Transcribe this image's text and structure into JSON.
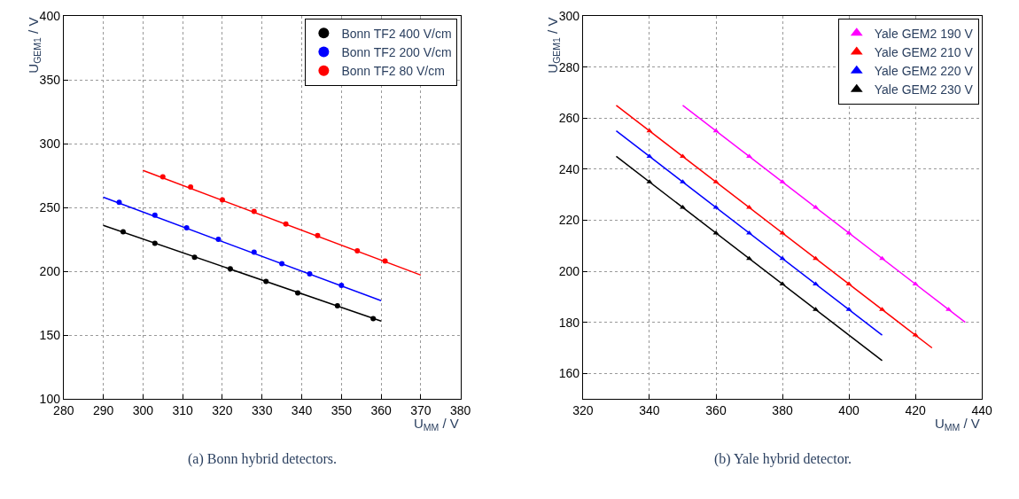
{
  "chart_data": [
    {
      "type": "scatter",
      "annotations": [
        "(a) Bonn hybrid detectors."
      ],
      "xlabel": "U$_{MM}$ / V",
      "ylabel": "U$_{GEM1}$ / V",
      "xlim": [
        280,
        380
      ],
      "ylim": [
        100,
        400
      ],
      "xticks": [
        280,
        290,
        300,
        310,
        320,
        330,
        340,
        350,
        360,
        370,
        380
      ],
      "yticks": [
        100,
        150,
        200,
        250,
        300,
        350,
        400
      ],
      "grid": true,
      "legend": "top right",
      "marker": "circle",
      "series": [
        {
          "name": "Bonn TF2 400 V/cm",
          "color": "#000000",
          "x": [
            295,
            303,
            313,
            322,
            331,
            339,
            349,
            358
          ],
          "values": [
            231,
            222,
            211,
            202,
            192,
            183,
            173,
            163
          ]
        },
        {
          "name": "Bonn TF2 200 V/cm",
          "color": "#0000ff",
          "x": [
            294,
            303,
            311,
            319,
            328,
            335,
            342,
            350
          ],
          "values": [
            254,
            244,
            234,
            225,
            215,
            206,
            198,
            189
          ]
        },
        {
          "name": "Bonn TF2 80 V/cm",
          "color": "#ff0000",
          "x": [
            305,
            312,
            320,
            328,
            336,
            344,
            354,
            361
          ],
          "values": [
            274,
            266,
            256,
            247,
            237,
            228,
            216,
            208
          ]
        },
        {
          "type": "line",
          "marker": "none",
          "color": "#000000",
          "x": [
            290,
            360
          ],
          "values": [
            236,
            161
          ]
        },
        {
          "type": "line",
          "marker": "none",
          "color": "#0000ff",
          "x": [
            290,
            360
          ],
          "values": [
            258,
            177
          ]
        },
        {
          "type": "line",
          "marker": "none",
          "color": "#ff0000",
          "x": [
            300,
            370
          ],
          "values": [
            279,
            197
          ]
        }
      ]
    },
    {
      "type": "scatter",
      "annotations": [
        "(b) Yale hybrid detector."
      ],
      "xlabel": "U$_{MM}$ / V",
      "ylabel": "U$_{GEM1}$ / V",
      "xlim": [
        320,
        440
      ],
      "ylim": [
        150,
        300
      ],
      "xticks": [
        320,
        340,
        360,
        380,
        400,
        420,
        440
      ],
      "yticks": [
        160,
        180,
        200,
        220,
        240,
        260,
        280,
        300
      ],
      "grid": true,
      "legend": "top right",
      "marker": "triangle",
      "series": [
        {
          "name": "Yale GEM2 190 V",
          "color": "#ff00ff",
          "x": [
            360,
            370,
            380,
            390,
            400,
            410,
            420,
            430
          ],
          "values": [
            255,
            245,
            235,
            225,
            215,
            205,
            195,
            185
          ]
        },
        {
          "name": "Yale GEM2 210 V",
          "color": "#ff0000",
          "x": [
            340,
            350,
            360,
            370,
            380,
            390,
            400,
            410,
            420
          ],
          "values": [
            255,
            245,
            235,
            225,
            215,
            205,
            195,
            185,
            175
          ]
        },
        {
          "name": "Yale GEM2 220 V",
          "color": "#0000ff",
          "x": [
            340,
            350,
            360,
            370,
            380,
            390,
            400
          ],
          "values": [
            245,
            235,
            225,
            215,
            205,
            195,
            185
          ]
        },
        {
          "name": "Yale GEM2 230 V",
          "color": "#000000",
          "x": [
            340,
            350,
            360,
            370,
            380,
            390
          ],
          "values": [
            235,
            225,
            215,
            205,
            195,
            185
          ]
        },
        {
          "type": "line",
          "marker": "none",
          "color": "#ff00ff",
          "x": [
            350,
            435
          ],
          "values": [
            265,
            180
          ]
        },
        {
          "type": "line",
          "marker": "none",
          "color": "#ff0000",
          "x": [
            330,
            425
          ],
          "values": [
            265,
            170
          ]
        },
        {
          "type": "line",
          "marker": "none",
          "color": "#0000ff",
          "x": [
            330,
            410
          ],
          "values": [
            255,
            175
          ]
        },
        {
          "type": "line",
          "marker": "none",
          "color": "#000000",
          "x": [
            330,
            410
          ],
          "values": [
            245,
            165
          ]
        }
      ]
    }
  ]
}
